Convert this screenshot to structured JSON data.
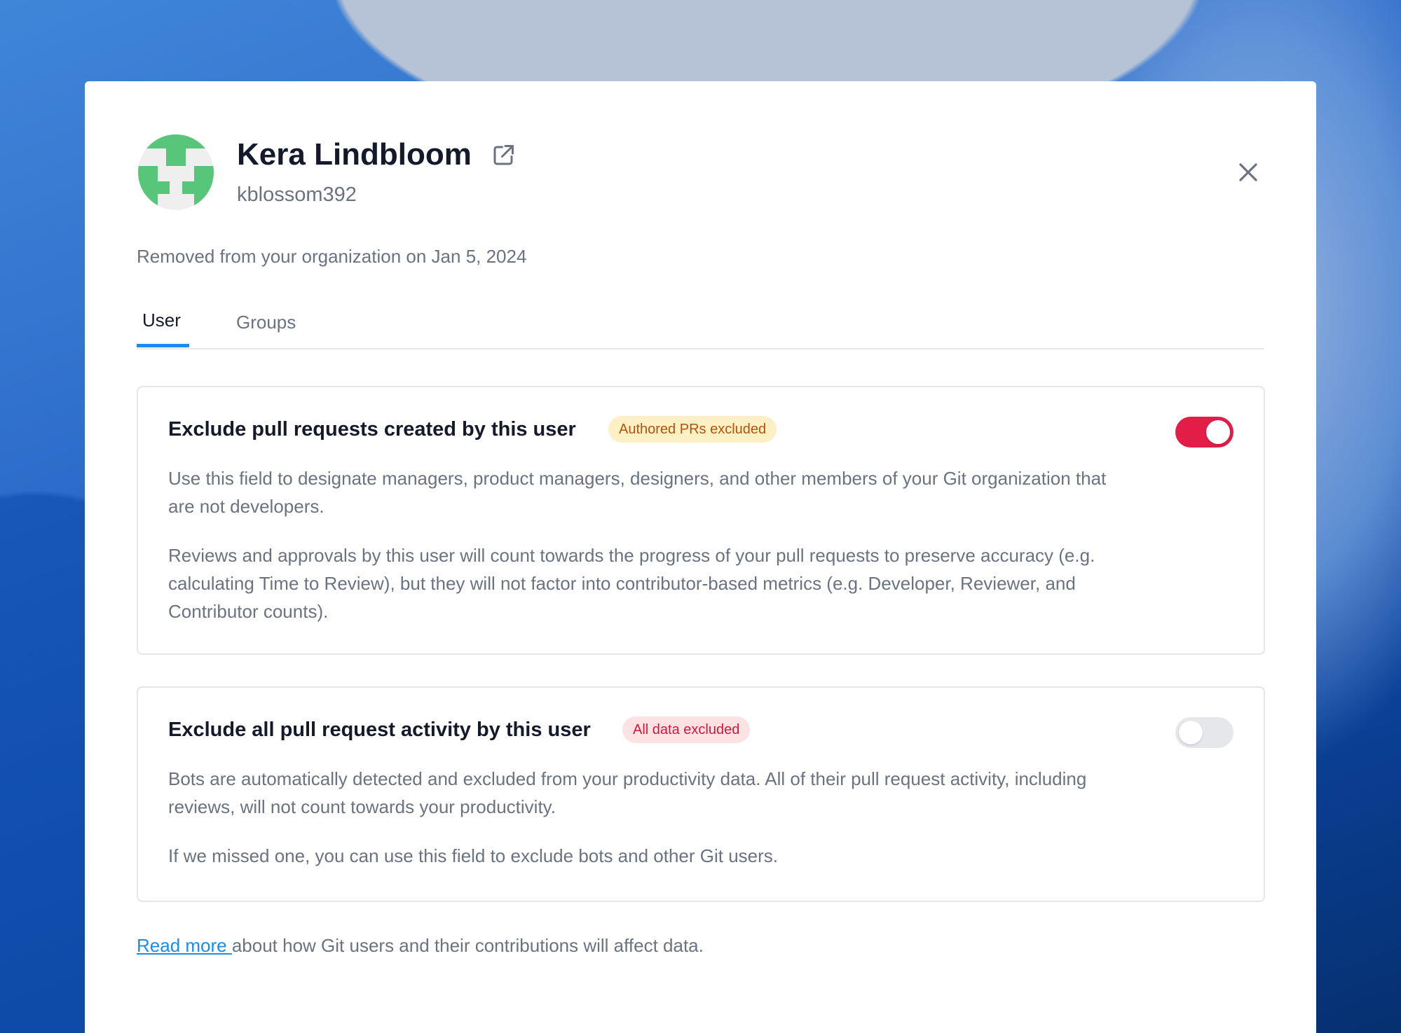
{
  "profile": {
    "name": "Kera Lindbloom",
    "username": "kblossom392",
    "removed_note": "Removed from your organization on Jan 5, 2024",
    "avatar_color": "#57c67b"
  },
  "tabs": [
    {
      "label": "User",
      "active": true
    },
    {
      "label": "Groups",
      "active": false
    }
  ],
  "settings": [
    {
      "title": "Exclude pull requests created by this user",
      "badge": "Authored PRs excluded",
      "enabled": true,
      "paragraphs": [
        "Use this field to designate managers, product managers, designers, and other members of your Git organization that are not developers.",
        "Reviews and approvals by this user will count towards the progress of your pull requests to preserve accuracy (e.g. calculating Time to Review), but they will not factor into contributor-based metrics (e.g. Developer, Reviewer, and Contributor counts)."
      ]
    },
    {
      "title": "Exclude all pull request activity by this user",
      "badge": "All data excluded",
      "enabled": false,
      "paragraphs": [
        "Bots are automatically detected and excluded from your productivity data. All of their pull request activity, including reviews, will not count towards your productivity.",
        "If we missed one, you can use this field to exclude bots and other Git users."
      ]
    }
  ],
  "footer": {
    "link": "Read more ",
    "text": "about how Git users and their contributions will affect data."
  },
  "colors": {
    "accent": "#1a8cf0",
    "toggle_on": "#e11d48"
  },
  "icons": [
    "external-link-icon",
    "close-icon"
  ]
}
